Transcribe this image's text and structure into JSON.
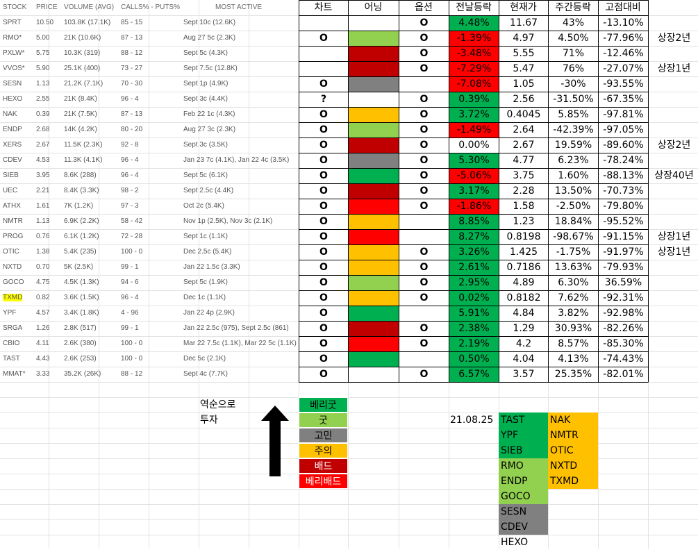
{
  "left_headers": [
    "STOCK",
    "PRICE",
    "VOLUME (AVG)",
    "CALLS% - PUTS%",
    "MOST ACTIVE"
  ],
  "right_headers": [
    "차트",
    "어닝",
    "옵션",
    "전날등락",
    "현재가",
    "주간등락",
    "고점대비"
  ],
  "colors": {
    "very_good": "#00b050",
    "good": "#92d050",
    "gomin": "#808080",
    "caution": "#ffc000",
    "bad": "#c00000",
    "very_bad": "#ff0000",
    "highlight": "#ffff00"
  },
  "rows": [
    {
      "stock": "SPRT",
      "price": "10.50",
      "volume": "103.8K (17.1K)",
      "callsputs": "85 - 15",
      "active": "Sept 10c (12.6K)",
      "chart": "",
      "earning": "",
      "option": "O",
      "prev": "4.48%",
      "prev_color": "very_good",
      "cur": "11.67",
      "week": "43%",
      "peak": "-13.10%",
      "note": ""
    },
    {
      "stock": "RMO*",
      "price": "5.00",
      "volume": "21K (10.6K)",
      "callsputs": "87 - 13",
      "active": "Aug 27 5c (2.3K)",
      "chart": "O",
      "earning": "good",
      "option": "O",
      "prev": "-1.39%",
      "prev_color": "very_bad",
      "cur": "4.97",
      "week": "4.50%",
      "peak": "-77.96%",
      "note": "상장2년"
    },
    {
      "stock": "PXLW*",
      "price": "5.75",
      "volume": "10.3K (319)",
      "callsputs": "88 - 12",
      "active": "Sept 5c (4.3K)",
      "chart": "",
      "earning": "bad",
      "option": "O",
      "prev": "-3.48%",
      "prev_color": "very_bad",
      "cur": "5.55",
      "week": "71%",
      "peak": "-12.46%",
      "note": ""
    },
    {
      "stock": "VVOS*",
      "price": "5.90",
      "volume": "25.1K (400)",
      "callsputs": "73 - 27",
      "active": "Sept 7.5c (12.8K)",
      "chart": "",
      "earning": "bad",
      "option": "O",
      "prev": "-7.29%",
      "prev_color": "very_bad",
      "cur": "5.47",
      "week": "76%",
      "peak": "-27.07%",
      "note": "상장1년"
    },
    {
      "stock": "SESN",
      "price": "1.13",
      "volume": "21.2K (7.1K)",
      "callsputs": "70 - 30",
      "active": "Sept 1p (4.9K)",
      "chart": "O",
      "earning": "gomin",
      "option": "",
      "prev": "-7.08%",
      "prev_color": "very_bad",
      "cur": "1.05",
      "week": "-30%",
      "peak": "-93.55%",
      "note": ""
    },
    {
      "stock": "HEXO",
      "price": "2.55",
      "volume": "21K (8.4K)",
      "callsputs": "96 - 4",
      "active": "Sept 3c (4.4K)",
      "chart": "?",
      "earning": "",
      "option": "O",
      "prev": "0.39%",
      "prev_color": "very_good",
      "cur": "2.56",
      "week": "-31.50%",
      "peak": "-67.35%",
      "note": ""
    },
    {
      "stock": "NAK",
      "price": "0.39",
      "volume": "21K (7.5K)",
      "callsputs": "87 - 13",
      "active": "Feb 22 1c (4.3K)",
      "chart": "O",
      "earning": "caution",
      "option": "O",
      "prev": "3.72%",
      "prev_color": "very_good",
      "cur": "0.4045",
      "week": "5.85%",
      "peak": "-97.81%",
      "note": ""
    },
    {
      "stock": "ENDP",
      "price": "2.68",
      "volume": "14K (4.2K)",
      "callsputs": "80 - 20",
      "active": "Aug 27 3c (2.3K)",
      "chart": "O",
      "earning": "good",
      "option": "O",
      "prev": "-1.49%",
      "prev_color": "very_bad",
      "cur": "2.64",
      "week": "-42.39%",
      "peak": "-97.05%",
      "note": ""
    },
    {
      "stock": "XERS",
      "price": "2.67",
      "volume": "11.5K (2.3K)",
      "callsputs": "92 - 8",
      "active": "Sept 3c (3.5K)",
      "chart": "O",
      "earning": "bad",
      "option": "O",
      "prev": "0.00%",
      "prev_color": "",
      "cur": "2.67",
      "week": "19.59%",
      "peak": "-89.60%",
      "note": "상장2년"
    },
    {
      "stock": "CDEV",
      "price": "4.53",
      "volume": "11.3K (4.1K)",
      "callsputs": "96 - 4",
      "active": "Jan 23 7c (4.1K), Jan 22 4c (3.5K)",
      "chart": "O",
      "earning": "gomin",
      "option": "O",
      "prev": "5.30%",
      "prev_color": "very_good",
      "cur": "4.77",
      "week": "6.23%",
      "peak": "-78.24%",
      "note": ""
    },
    {
      "stock": "SIEB",
      "price": "3.95",
      "volume": "8.6K (288)",
      "callsputs": "96 - 4",
      "active": "Sept 5c (6.1K)",
      "chart": "O",
      "earning": "very_good",
      "option": "O",
      "prev": "-5.06%",
      "prev_color": "very_bad",
      "cur": "3.75",
      "week": "1.60%",
      "peak": "-88.13%",
      "note": "상장40년"
    },
    {
      "stock": "UEC",
      "price": "2.21",
      "volume": "8.4K (3.3K)",
      "callsputs": "98 - 2",
      "active": "Sept 2.5c (4.4K)",
      "chart": "O",
      "earning": "bad",
      "option": "O",
      "prev": "3.17%",
      "prev_color": "very_good",
      "cur": "2.28",
      "week": "13.50%",
      "peak": "-70.73%",
      "note": ""
    },
    {
      "stock": "ATHX",
      "price": "1.61",
      "volume": "7K (1.2K)",
      "callsputs": "97 - 3",
      "active": "Oct 2c (5.4K)",
      "chart": "O",
      "earning": "very_bad",
      "option": "O",
      "prev": "-1.86%",
      "prev_color": "very_bad",
      "cur": "1.58",
      "week": "-2.50%",
      "peak": "-79.80%",
      "note": ""
    },
    {
      "stock": "NMTR",
      "price": "1.13",
      "volume": "6.9K (2.2K)",
      "callsputs": "58 - 42",
      "active": "Nov 1p (2.5K), Nov 3c (2.1K)",
      "chart": "O",
      "earning": "caution",
      "option": "",
      "prev": "8.85%",
      "prev_color": "very_good",
      "cur": "1.23",
      "week": "18.84%",
      "peak": "-95.52%",
      "note": ""
    },
    {
      "stock": "PROG",
      "price": "0.76",
      "volume": "6.1K (1.2K)",
      "callsputs": "72 - 28",
      "active": "Sept 1c (1.1K)",
      "chart": "O",
      "earning": "very_bad",
      "option": "",
      "prev": "8.27%",
      "prev_color": "very_good",
      "cur": "0.8198",
      "week": "-98.67%",
      "peak": "-91.15%",
      "note": "상장1년"
    },
    {
      "stock": "OTIC",
      "price": "1.38",
      "volume": "5.4K (235)",
      "callsputs": "100 - 0",
      "active": "Dec 2.5c (5.4K)",
      "chart": "O",
      "earning": "caution",
      "option": "O",
      "prev": "3.26%",
      "prev_color": "very_good",
      "cur": "1.425",
      "week": "-1.75%",
      "peak": "-91.97%",
      "note": "상장1년"
    },
    {
      "stock": "NXTD",
      "price": "0.70",
      "volume": "5K (2.5K)",
      "callsputs": "99 - 1",
      "active": "Jan 22 1.5c (3.3K)",
      "chart": "O",
      "earning": "caution",
      "option": "O",
      "prev": "2.61%",
      "prev_color": "very_good",
      "cur": "0.7186",
      "week": "13.63%",
      "peak": "-79.93%",
      "note": ""
    },
    {
      "stock": "GOCO",
      "price": "4.75",
      "volume": "4.5K (1.3K)",
      "callsputs": "94 - 6",
      "active": "Sept 5c (1.9K)",
      "chart": "O",
      "earning": "good",
      "option": "O",
      "prev": "2.95%",
      "prev_color": "very_good",
      "cur": "4.89",
      "week": "6.30%",
      "peak": "36.59%",
      "note": ""
    },
    {
      "stock": "TXMD",
      "price": "0.82",
      "volume": "3.6K (1.5K)",
      "callsputs": "96 - 4",
      "active": "Dec 1c (1.1K)",
      "chart": "O",
      "earning": "caution",
      "option": "O",
      "prev": "0.02%",
      "prev_color": "very_good",
      "cur": "0.8182",
      "week": "7.62%",
      "peak": "-92.31%",
      "note": "",
      "highlight": true
    },
    {
      "stock": "YPF",
      "price": "4.57",
      "volume": "3.4K (1.8K)",
      "callsputs": "4 - 96",
      "active": "Jan 22 4p (2.9K)",
      "chart": "O",
      "earning": "very_good",
      "option": "",
      "prev": "5.91%",
      "prev_color": "very_good",
      "cur": "4.84",
      "week": "3.82%",
      "peak": "-92.98%",
      "note": ""
    },
    {
      "stock": "SRGA",
      "price": "1.26",
      "volume": "2.8K (517)",
      "callsputs": "99 - 1",
      "active": "Jan 22 2.5c (975), Sept 2.5c (861)",
      "chart": "O",
      "earning": "bad",
      "option": "O",
      "prev": "2.38%",
      "prev_color": "very_good",
      "cur": "1.29",
      "week": "30.93%",
      "peak": "-82.26%",
      "note": ""
    },
    {
      "stock": "CBIO",
      "price": "4.11",
      "volume": "2.6K (380)",
      "callsputs": "100 - 0",
      "active": "Mar 22 7.5c (1.1K), Mar 22 5c (1.1K)",
      "chart": "O",
      "earning": "very_bad",
      "option": "O",
      "prev": "2.19%",
      "prev_color": "very_good",
      "cur": "4.2",
      "week": "8.57%",
      "peak": "-85.30%",
      "note": ""
    },
    {
      "stock": "TAST",
      "price": "4.43",
      "volume": "2.6K (253)",
      "callsputs": "100 - 0",
      "active": "Dec 5c (2.1K)",
      "chart": "O",
      "earning": "very_good",
      "option": "",
      "prev": "0.50%",
      "prev_color": "very_good",
      "cur": "4.04",
      "week": "4.13%",
      "peak": "-74.43%",
      "note": ""
    },
    {
      "stock": "MMAT*",
      "price": "3.33",
      "volume": "35.2K (26K)",
      "callsputs": "88 - 12",
      "active": "Sept 4c (7.7K)",
      "chart": "O",
      "earning": "",
      "option": "O",
      "prev": "6.57%",
      "prev_color": "very_good",
      "cur": "3.57",
      "week": "25.35%",
      "peak": "-82.01%",
      "note": ""
    }
  ],
  "reverse_label_1": "역순으로",
  "reverse_label_2": "투자",
  "legend": [
    {
      "label": "베리굿",
      "color": "very_good"
    },
    {
      "label": "굿",
      "color": "good"
    },
    {
      "label": "고민",
      "color": "gomin"
    },
    {
      "label": "주의",
      "color": "caution"
    },
    {
      "label": "배드",
      "color": "bad"
    },
    {
      "label": "베리배드",
      "color": "very_bad"
    }
  ],
  "date": "21.08.25",
  "bucket_col1": [
    {
      "name": "TAST",
      "color": "very_good"
    },
    {
      "name": "YPF",
      "color": "very_good"
    },
    {
      "name": "SIEB",
      "color": "very_good"
    },
    {
      "name": "RMO",
      "color": "good"
    },
    {
      "name": "ENDP",
      "color": "good"
    },
    {
      "name": "GOCO",
      "color": "good"
    },
    {
      "name": "SESN",
      "color": "gomin"
    },
    {
      "name": "CDEV",
      "color": "gomin"
    },
    {
      "name": "HEXO",
      "color": ""
    }
  ],
  "bucket_col2": [
    {
      "name": "NAK",
      "color": "caution"
    },
    {
      "name": "NMTR",
      "color": "caution"
    },
    {
      "name": "OTIC",
      "color": "caution"
    },
    {
      "name": "NXTD",
      "color": "caution"
    },
    {
      "name": "TXMD",
      "color": "caution"
    }
  ]
}
